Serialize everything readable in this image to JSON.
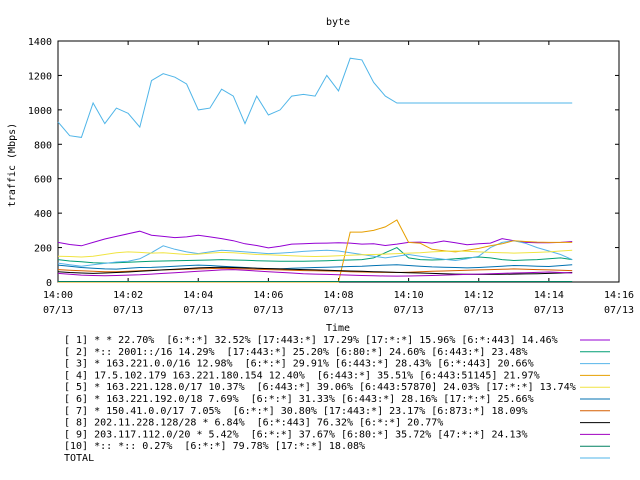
{
  "chart_data": {
    "type": "line",
    "title": "byte",
    "xlabel": "Time",
    "ylabel": "traffic (Mbps)",
    "ylim": [
      0,
      1400
    ],
    "yticks": [
      0,
      200,
      400,
      600,
      800,
      1000,
      1200,
      1400
    ],
    "xlim": [
      "14:00",
      "14:16"
    ],
    "xticks": [
      {
        "time": "14:00",
        "date": "07/13"
      },
      {
        "time": "14:02",
        "date": "07/13"
      },
      {
        "time": "14:04",
        "date": "07/13"
      },
      {
        "time": "14:06",
        "date": "07/13"
      },
      {
        "time": "14:08",
        "date": "07/13"
      },
      {
        "time": "14:10",
        "date": "07/13"
      },
      {
        "time": "14:12",
        "date": "07/13"
      },
      {
        "time": "14:14",
        "date": "07/13"
      },
      {
        "time": "14:16",
        "date": "07/13"
      }
    ],
    "x": [
      "14:00:00",
      "14:00:20",
      "14:00:40",
      "14:01:00",
      "14:01:20",
      "14:01:40",
      "14:02:00",
      "14:02:20",
      "14:02:40",
      "14:03:00",
      "14:03:20",
      "14:03:40",
      "14:04:00",
      "14:04:20",
      "14:04:40",
      "14:05:00",
      "14:05:20",
      "14:05:40",
      "14:06:00",
      "14:06:20",
      "14:06:40",
      "14:07:00",
      "14:07:20",
      "14:07:40",
      "14:08:00",
      "14:08:20",
      "14:08:40",
      "14:09:00",
      "14:09:20",
      "14:09:40",
      "14:10:00",
      "14:10:20",
      "14:10:40",
      "14:11:00",
      "14:11:20",
      "14:11:40",
      "14:12:00",
      "14:12:20",
      "14:12:40",
      "14:13:00",
      "14:13:20",
      "14:13:40",
      "14:14:00",
      "14:14:20",
      "14:14:40"
    ],
    "grid": false,
    "legend_placement": "bottom",
    "series": [
      {
        "name": "[ 1] * * 22.70%  [6:*:*] 32.52% [17:443:*] 17.29% [17:*:*] 15.96% [6:*:443] 14.46%",
        "color": "#9400d3",
        "values": [
          230,
          218,
          210,
          230,
          250,
          265,
          280,
          295,
          272,
          265,
          258,
          262,
          272,
          262,
          252,
          240,
          222,
          212,
          198,
          208,
          220,
          222,
          225,
          226,
          228,
          226,
          220,
          222,
          212,
          220,
          230,
          232,
          226,
          238,
          228,
          216,
          222,
          226,
          252,
          240,
          230,
          228,
          228,
          230,
          235
        ]
      },
      {
        "name": "[ 2] *:: 2001::/16 14.29%  [17:443:*] 25.20% [6:80:*] 24.60% [6:443:*] 23.48%",
        "color": "#009e73",
        "values": [
          130,
          122,
          118,
          112,
          110,
          112,
          115,
          118,
          120,
          122,
          124,
          125,
          126,
          128,
          130,
          128,
          126,
          124,
          122,
          120,
          120,
          120,
          122,
          124,
          126,
          128,
          130,
          140,
          170,
          200,
          140,
          130,
          128,
          130,
          135,
          140,
          145,
          140,
          130,
          125,
          128,
          130,
          135,
          140,
          130
        ]
      },
      {
        "name": "[ 3] * 163.221.0.0/16 12.98%  [6:*:*] 29.91% [6:443:*] 28.43% [6:*:443] 20.66%",
        "color": "#56b4e9",
        "values": [
          110,
          100,
          92,
          100,
          108,
          116,
          120,
          135,
          170,
          210,
          190,
          175,
          165,
          175,
          185,
          180,
          175,
          170,
          165,
          168,
          172,
          178,
          182,
          185,
          180,
          170,
          160,
          150,
          140,
          150,
          160,
          150,
          140,
          132,
          125,
          135,
          150,
          200,
          230,
          240,
          225,
          200,
          180,
          160,
          130
        ]
      },
      {
        "name": "[ 4] 17.5.102.179 163.221.180.154 12.40%  [6:443:*] 35.51% [6:443:51145] 21.97%",
        "color": "#e69f00",
        "values": [
          0,
          0,
          0,
          0,
          0,
          0,
          0,
          0,
          0,
          0,
          0,
          0,
          0,
          0,
          0,
          0,
          0,
          0,
          0,
          0,
          0,
          0,
          0,
          0,
          0,
          290,
          290,
          300,
          320,
          360,
          230,
          225,
          190,
          182,
          175,
          185,
          195,
          210,
          222,
          240,
          235,
          232,
          230,
          230,
          230
        ]
      },
      {
        "name": "[ 5] * 163.221.128.0/17 10.37%  [6:443:*] 39.06% [6:443:57870] 24.03% [17:*:*] 13.74%",
        "color": "#f0e442",
        "values": [
          150,
          148,
          145,
          150,
          160,
          170,
          175,
          172,
          168,
          170,
          165,
          160,
          162,
          168,
          172,
          170,
          165,
          160,
          158,
          155,
          152,
          150,
          148,
          150,
          152,
          155,
          158,
          160,
          162,
          165,
          168,
          170,
          175,
          178,
          180,
          178,
          175,
          172,
          170,
          168,
          170,
          172,
          175,
          180,
          185
        ]
      },
      {
        "name": "[ 6] * 163.221.192.0/18 7.69%  [6:*:*] 31.33% [6:443:*] 28.16% [17:*:*] 25.66%",
        "color": "#0072b2",
        "values": [
          98,
          92,
          84,
          80,
          76,
          75,
          80,
          84,
          85,
          88,
          92,
          95,
          98,
          96,
          92,
          88,
          84,
          80,
          78,
          76,
          80,
          82,
          84,
          86,
          88,
          90,
          92,
          95,
          98,
          100,
          96,
          92,
          88,
          86,
          84,
          82,
          84,
          88,
          92,
          96,
          94,
          92,
          90,
          95,
          100
        ]
      },
      {
        "name": "[ 7] * 150.41.0.0/17 7.05%  [6:*:*] 30.80% [17:443:*] 23.17% [6:873:*] 18.09%",
        "color": "#d55e00",
        "values": [
          72,
          68,
          65,
          62,
          60,
          60,
          62,
          65,
          68,
          70,
          72,
          74,
          76,
          78,
          80,
          78,
          76,
          74,
          72,
          70,
          68,
          66,
          65,
          64,
          62,
          60,
          58,
          57,
          56,
          55,
          57,
          60,
          62,
          64,
          66,
          68,
          70,
          72,
          74,
          76,
          74,
          72,
          70,
          68,
          66
        ]
      },
      {
        "name": "[ 8] 202.11.228.128/28 * 6.84%  [6:*:443] 76.32% [6:*:*] 20.77%",
        "color": "#000000",
        "values": [
          60,
          55,
          52,
          50,
          52,
          55,
          58,
          62,
          66,
          70,
          74,
          78,
          82,
          84,
          86,
          84,
          82,
          80,
          78,
          76,
          74,
          72,
          70,
          68,
          66,
          64,
          62,
          60,
          58,
          56,
          54,
          52,
          50,
          48,
          46,
          45,
          44,
          44,
          45,
          46,
          47,
          48,
          50,
          52,
          55
        ]
      },
      {
        "name": "[ 9] 203.117.112.0/20 * 5.42%  [6:*:*] 37.67% [6:80:*] 35.72% [47:*:*] 24.13%",
        "color": "#a000c0",
        "values": [
          50,
          45,
          40,
          38,
          36,
          38,
          40,
          42,
          46,
          50,
          54,
          58,
          62,
          66,
          70,
          72,
          68,
          64,
          60,
          56,
          52,
          48,
          46,
          44,
          42,
          40,
          38,
          36,
          35,
          34,
          35,
          36,
          38,
          40,
          42,
          44,
          46,
          48,
          50,
          52,
          54,
          56,
          58,
          55,
          52
        ]
      },
      {
        "name": "[10] *:: *:: 0.27%  [6:*:*] 79.78% [17:*:*] 18.08%",
        "color": "#008060",
        "values": [
          3,
          3,
          3,
          3,
          3,
          3,
          3,
          3,
          3,
          3,
          3,
          3,
          3,
          3,
          3,
          3,
          3,
          3,
          3,
          3,
          3,
          3,
          3,
          3,
          3,
          3,
          3,
          3,
          3,
          3,
          3,
          3,
          3,
          3,
          3,
          3,
          3,
          3,
          3,
          3,
          3,
          3,
          3,
          3,
          3
        ]
      },
      {
        "name": "TOTAL",
        "color": "#4fb5e8",
        "values": [
          930,
          850,
          840,
          1040,
          920,
          1010,
          980,
          900,
          1170,
          1210,
          1190,
          1150,
          1000,
          1010,
          1120,
          1080,
          920,
          1080,
          970,
          1000,
          1080,
          1090,
          1080,
          1200,
          1110,
          1300,
          1290,
          1160,
          1080,
          1040,
          1040,
          1040,
          1040,
          1040,
          1040,
          1040,
          1040,
          1040,
          1040,
          1040,
          1040,
          1040,
          1040,
          1040,
          1040
        ]
      }
    ]
  }
}
